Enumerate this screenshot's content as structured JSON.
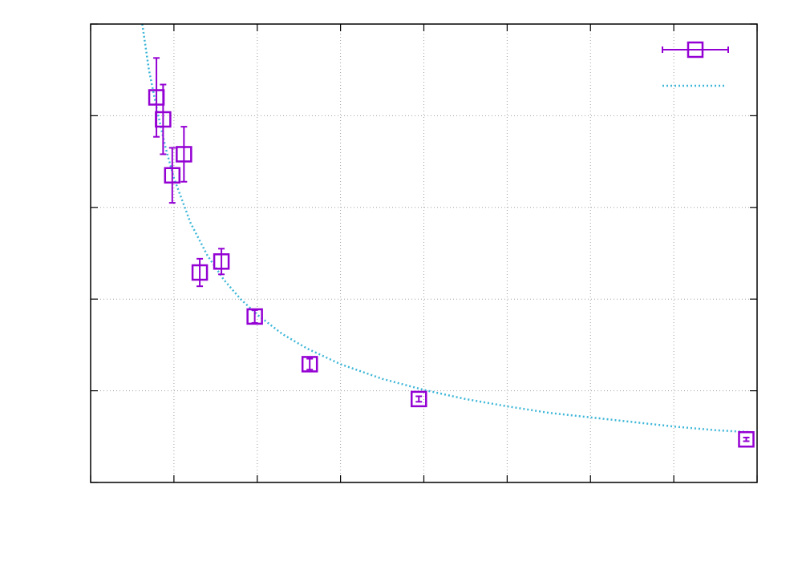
{
  "chart_data": {
    "type": "scatter",
    "title": "",
    "xlabel": "",
    "ylabel": "",
    "xlim": [
      0,
      8
    ],
    "ylim": [
      0,
      5
    ],
    "grid": true,
    "legend_position": "top-right",
    "series": [
      {
        "kind": "points-with-errorbars",
        "color": "#9400d3",
        "marker": "open-square",
        "points": [
          {
            "x": 0.79,
            "y": 4.2,
            "yerr_low": 0.43,
            "yerr_high": 0.43
          },
          {
            "x": 0.87,
            "y": 3.96,
            "yerr_low": 0.38,
            "yerr_high": 0.38
          },
          {
            "x": 0.98,
            "y": 3.35,
            "yerr_low": 0.3,
            "yerr_high": 0.3
          },
          {
            "x": 1.12,
            "y": 3.58,
            "yerr_low": 0.3,
            "yerr_high": 0.3
          },
          {
            "x": 1.31,
            "y": 2.29,
            "yerr_low": 0.15,
            "yerr_high": 0.15
          },
          {
            "x": 1.57,
            "y": 2.41,
            "yerr_low": 0.14,
            "yerr_high": 0.14
          },
          {
            "x": 1.97,
            "y": 1.81,
            "yerr_low": 0.07,
            "yerr_high": 0.07
          },
          {
            "x": 2.63,
            "y": 1.29,
            "yerr_low": 0.06,
            "yerr_high": 0.06
          },
          {
            "x": 3.94,
            "y": 0.91,
            "yerr_low": 0.03,
            "yerr_high": 0.03
          },
          {
            "x": 7.87,
            "y": 0.47,
            "yerr_low": 0.02,
            "yerr_high": 0.02
          }
        ]
      },
      {
        "kind": "fit-curve",
        "color": "#3fb7d8",
        "x": [
          0.62,
          0.7,
          0.8,
          0.9,
          1.0,
          1.2,
          1.4,
          1.6,
          1.8,
          2.0,
          2.3,
          2.6,
          3.0,
          3.5,
          4.0,
          4.5,
          5.0,
          5.5,
          6.0,
          6.5,
          7.0,
          7.5,
          7.9
        ],
        "y": [
          5.0,
          4.5,
          4.05,
          3.65,
          3.32,
          2.83,
          2.48,
          2.21,
          2.0,
          1.83,
          1.62,
          1.46,
          1.29,
          1.13,
          1.01,
          0.91,
          0.83,
          0.76,
          0.71,
          0.66,
          0.61,
          0.57,
          0.55
        ]
      }
    ]
  }
}
